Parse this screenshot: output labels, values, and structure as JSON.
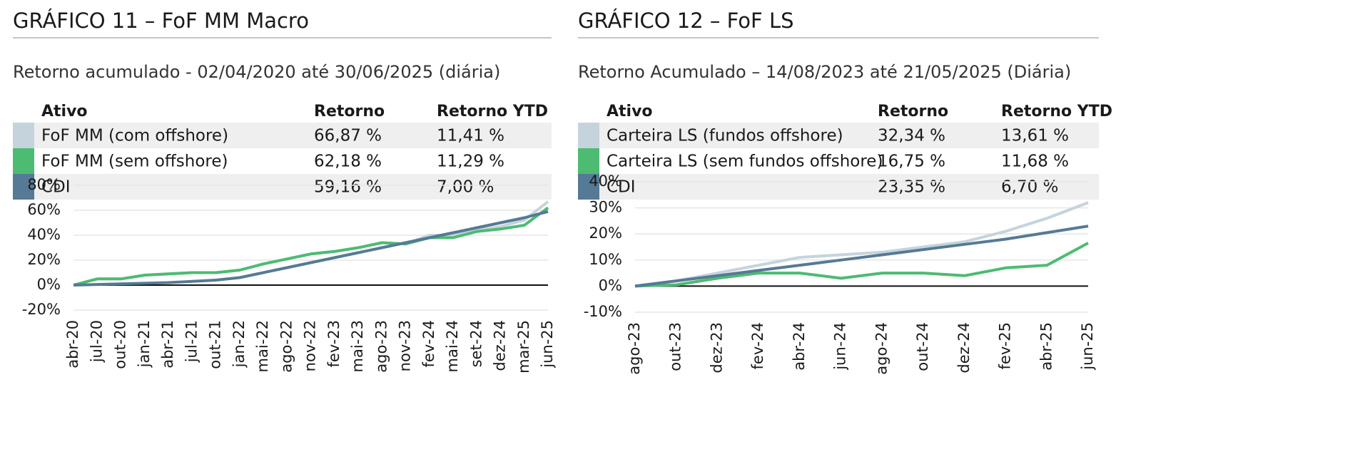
{
  "chart_data": [
    {
      "type": "line",
      "title": "GRÁFICO 11 – FoF MM Macro",
      "subtitle": "Retorno acumulado - 02/04/2020 até 30/06/2025 (diária)",
      "columns": [
        "Ativo",
        "Retorno",
        "Retorno YTD"
      ],
      "categories": [
        "abr-20",
        "jul-20",
        "out-20",
        "jan-21",
        "abr-21",
        "jul-21",
        "out-21",
        "jan-22",
        "mai-22",
        "ago-22",
        "nov-22",
        "fev-23",
        "mai-23",
        "ago-23",
        "nov-23",
        "fev-24",
        "mai-24",
        "set-24",
        "dez-24",
        "mar-25",
        "jun-25"
      ],
      "series": [
        {
          "name": "FoF MM (com offshore)",
          "color": "#c5d4dc",
          "retorno": "66,87 %",
          "retorno_ytd": "11,41 %",
          "values": [
            0,
            5,
            5,
            8,
            9,
            10,
            10,
            12,
            17,
            21,
            25,
            27,
            30,
            34,
            33,
            40,
            40,
            44,
            47,
            52,
            67
          ]
        },
        {
          "name": "FoF MM (sem offshore)",
          "color": "#4dbb72",
          "retorno": "62,18 %",
          "retorno_ytd": "11,29 %",
          "values": [
            0,
            5,
            5,
            8,
            9,
            10,
            10,
            12,
            17,
            21,
            25,
            27,
            30,
            34,
            33,
            38,
            38,
            43,
            45,
            48,
            62
          ]
        },
        {
          "name": "CDI",
          "color": "#557a95",
          "retorno": "59,16 %",
          "retorno_ytd": "7,00 %",
          "values": [
            0,
            0.5,
            1,
            1.5,
            2,
            3,
            4,
            6,
            10,
            14,
            18,
            22,
            26,
            30,
            34,
            38,
            42,
            46,
            50,
            54,
            59
          ]
        }
      ],
      "ylim": [
        -20,
        80
      ],
      "yticks": [
        {
          "value": -20,
          "label": "-20%"
        },
        {
          "value": 0,
          "label": "0%"
        },
        {
          "value": 20,
          "label": "20%"
        },
        {
          "value": 40,
          "label": "40%"
        },
        {
          "value": 60,
          "label": "60%"
        },
        {
          "value": 80,
          "label": "80%"
        }
      ],
      "grid": true
    },
    {
      "type": "line",
      "title": "GRÁFICO 12 – FoF LS",
      "subtitle": "Retorno Acumulado – 14/08/2023 até 21/05/2025 (Diária)",
      "columns": [
        "Ativo",
        "Retorno",
        "Retorno YTD"
      ],
      "categories": [
        "ago-23",
        "out-23",
        "dez-23",
        "fev-24",
        "abr-24",
        "jun-24",
        "ago-24",
        "out-24",
        "dez-24",
        "fev-25",
        "abr-25",
        "jun-25"
      ],
      "series": [
        {
          "name": "Carteira LS (fundos offshore)",
          "color": "#c5d4dc",
          "retorno": "32,34 %",
          "retorno_ytd": "13,61 %",
          "values": [
            0,
            2,
            5,
            8,
            11,
            12,
            13,
            15,
            17,
            21,
            26,
            32
          ]
        },
        {
          "name": "Carteira LS (sem fundos offshore)",
          "color": "#4dbb72",
          "retorno": "16,75 %",
          "retorno_ytd": "11,68 %",
          "values": [
            0,
            0.5,
            3,
            5,
            5,
            3,
            5,
            5,
            4,
            7,
            8,
            16.5
          ]
        },
        {
          "name": "CDI",
          "color": "#557a95",
          "retorno": "23,35 %",
          "retorno_ytd": "6,70 %",
          "values": [
            0,
            2,
            4,
            6,
            8,
            10,
            12,
            14,
            16,
            18,
            20.5,
            23
          ]
        }
      ],
      "ylim": [
        -10,
        40
      ],
      "yticks": [
        {
          "value": -10,
          "label": "-10%"
        },
        {
          "value": 0,
          "label": "0%"
        },
        {
          "value": 10,
          "label": "10%"
        },
        {
          "value": 20,
          "label": "20%"
        },
        {
          "value": 30,
          "label": "30%"
        },
        {
          "value": 40,
          "label": "40%"
        }
      ],
      "grid": true
    }
  ]
}
